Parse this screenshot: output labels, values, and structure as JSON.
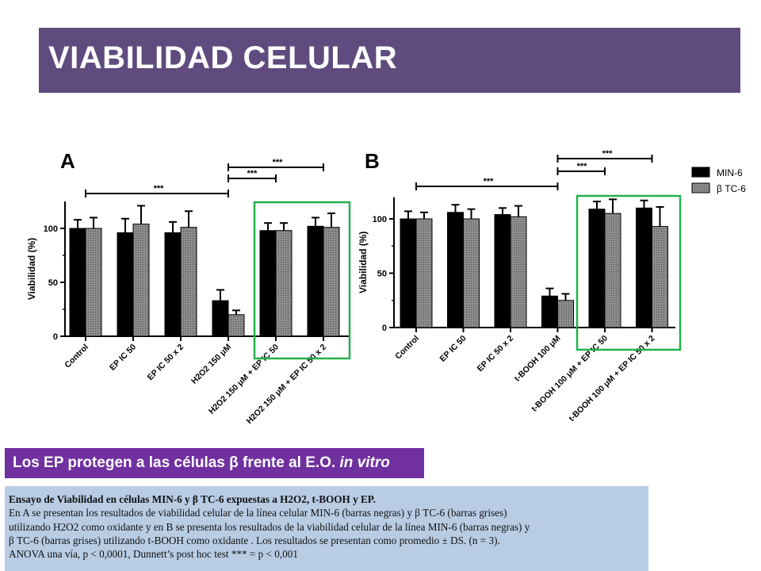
{
  "header": {
    "title": "VIABILIDAD CELULAR"
  },
  "subtitle": {
    "main": "Los EP protegen a las células β frente al E.O. ",
    "italic": "in vitro"
  },
  "caption": {
    "title": "Ensayo de Viabilidad en células MIN-6 y β TC-6 expuestas a H2O2, t-BOOH y EP.",
    "lines": [
      "En A se presentan los resultados de viabilidad celular de la línea celular MIN-6 (barras negras) y β TC-6 (barras grises)",
      "utilizando H2O2 como oxidante y en B se presenta los resultados de la viabilidad celular de la línea MIN-6 (barras negras) y",
      "β TC-6 (barras grises) utilizando t-BOOH como oxidante . Los resultados se presentan como promedio ± DS. (n = 3).",
      "ANOVA una vía, p < 0,0001, Dunnett’s post hoc test *** = p < 0,001"
    ]
  },
  "legend": {
    "series": [
      "MIN-6",
      "β TC-6"
    ]
  },
  "colors": {
    "min6": "#000000",
    "btc6": "#8c8c8c",
    "highlight": "#22b14c",
    "title_bg": "#5f4b7d",
    "subtitle_bg": "#7030a0",
    "caption_bg": "#b8cce4"
  },
  "chart_data": [
    {
      "panel": "A",
      "type": "bar",
      "ylabel": "Viabilidad (%)",
      "ylim": [
        0,
        125
      ],
      "yticks": [
        "0",
        "50",
        "100"
      ],
      "categories": [
        "Control",
        "EP IC 50",
        "EP IC 50 x 2",
        "H2O2 150 μM",
        "H2O2 150 μM + EP IC 50",
        "H2O2 150 μM + EP IC 50 x 2"
      ],
      "series": [
        {
          "name": "MIN-6",
          "values": [
            100,
            96,
            96,
            33,
            98,
            102
          ],
          "errors": [
            8,
            13,
            10,
            10,
            7,
            8
          ]
        },
        {
          "name": "β TC-6",
          "values": [
            100,
            104,
            101,
            20,
            98,
            101
          ],
          "errors": [
            10,
            17,
            15,
            4,
            7,
            13
          ]
        }
      ],
      "significance": [
        {
          "label": "***",
          "from": 0,
          "to": 3
        },
        {
          "label": "***",
          "from": 3,
          "to": 4
        },
        {
          "label": "***",
          "from": 3,
          "to": 5
        }
      ],
      "highlight": [
        4,
        5
      ]
    },
    {
      "panel": "B",
      "type": "bar",
      "ylabel": "Viabilidad (%)",
      "ylim": [
        0,
        120
      ],
      "yticks": [
        "0",
        "50",
        "100"
      ],
      "categories": [
        "Control",
        "EP IC 50",
        "EP IC 50 x 2",
        "t-BOOH 100 μM",
        "t-BOOH 100 μM + EP IC 50",
        "t-BOOH 100 μM + EP IC 50 x 2"
      ],
      "series": [
        {
          "name": "MIN-6",
          "values": [
            100,
            106,
            104,
            29,
            109,
            110
          ],
          "errors": [
            7,
            7,
            6,
            7,
            7,
            7
          ]
        },
        {
          "name": "β TC-6",
          "values": [
            100,
            100,
            102,
            25,
            105,
            93
          ],
          "errors": [
            6,
            9,
            10,
            6,
            13,
            18
          ]
        }
      ],
      "significance": [
        {
          "label": "***",
          "from": 0,
          "to": 3
        },
        {
          "label": "***",
          "from": 3,
          "to": 4
        },
        {
          "label": "***",
          "from": 3,
          "to": 5
        }
      ],
      "highlight": [
        4,
        5
      ]
    }
  ]
}
